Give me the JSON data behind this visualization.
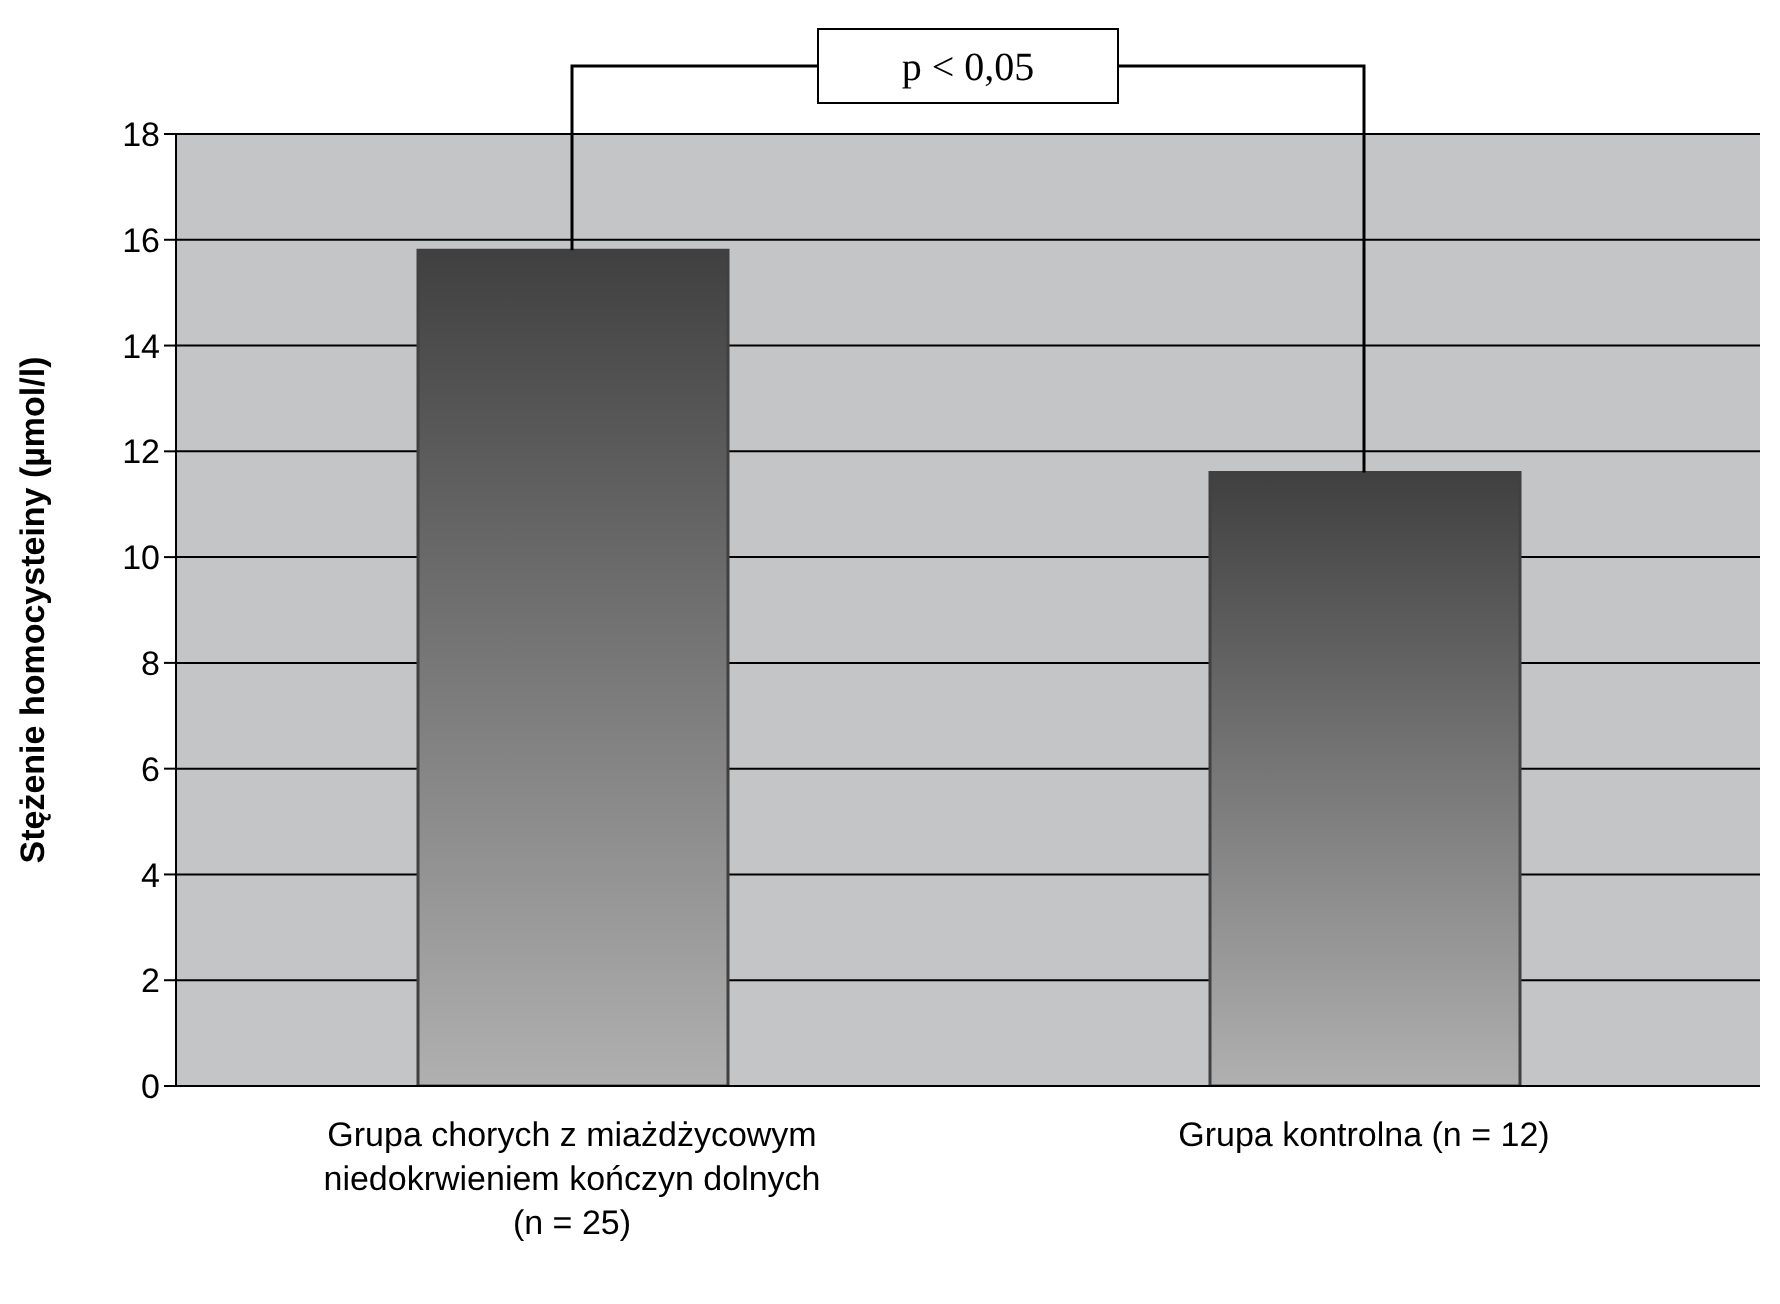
{
  "chart_data": {
    "type": "bar",
    "ylabel": "Stężenie homocysteiny (µmol/l)",
    "categories": [
      "Grupa chorych z miażdżycowym niedokrwieniem kończyn dolnych (n = 25)",
      "Grupa kontrolna (n = 12)"
    ],
    "values": [
      15.8,
      11.6
    ],
    "color": "#404040",
    "ylim": [
      0,
      18
    ],
    "yticks": [
      0,
      2,
      4,
      6,
      8,
      10,
      12,
      14,
      16,
      18
    ],
    "grid": "y",
    "annotations": [
      "p < 0,05"
    ]
  }
}
